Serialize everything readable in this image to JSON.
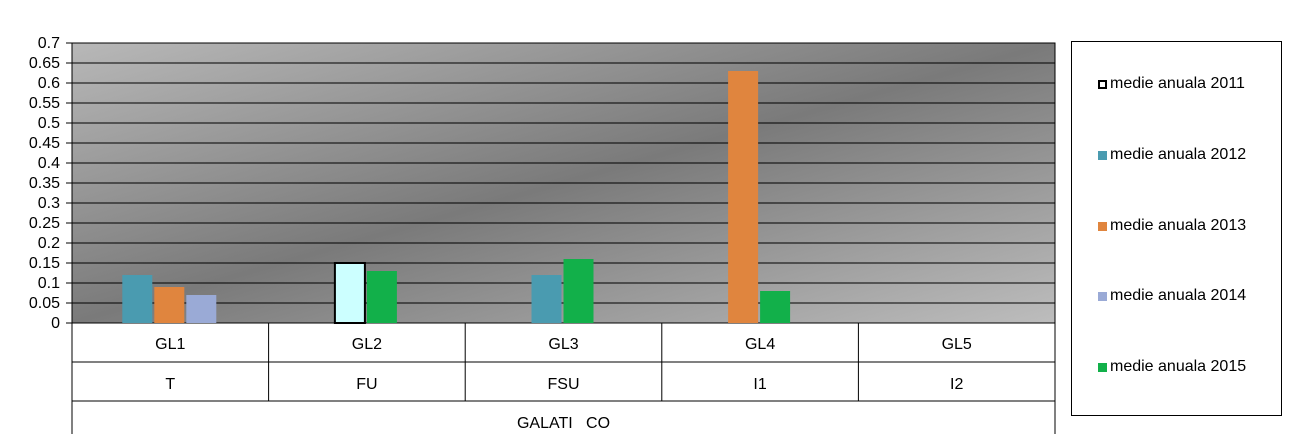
{
  "chart_data": {
    "type": "bar",
    "title": "",
    "xlabel": "",
    "ylabel": "",
    "ylim": [
      0,
      0.7
    ],
    "yticks": [
      "0",
      "0.05",
      "0.1",
      "0.15",
      "0.2",
      "0.25",
      "0.3",
      "0.35",
      "0.4",
      "0.45",
      "0.5",
      "0.55",
      "0.6",
      "0.65",
      "0.7"
    ],
    "grid": true,
    "legend_position": "right",
    "categories": [
      {
        "code": "GL1",
        "type": "T"
      },
      {
        "code": "GL2",
        "type": "FU"
      },
      {
        "code": "GL3",
        "type": "FSU"
      },
      {
        "code": "GL4",
        "type": "I1"
      },
      {
        "code": "GL5",
        "type": "I2"
      }
    ],
    "group_label": "GALATI   CO",
    "series": [
      {
        "name": "medie anuala 2011",
        "color": "#ccffff",
        "values": [
          null,
          0.15,
          null,
          null,
          null
        ]
      },
      {
        "name": "medie anuala 2012",
        "color": "#4a9bb0",
        "values": [
          0.12,
          null,
          0.12,
          null,
          null
        ]
      },
      {
        "name": "medie anuala 2013",
        "color": "#e0853e",
        "values": [
          0.09,
          null,
          null,
          0.63,
          null
        ]
      },
      {
        "name": "medie anuala 2014",
        "color": "#9aaad6",
        "values": [
          0.07,
          null,
          null,
          null,
          null
        ]
      },
      {
        "name": "medie anuala 2015",
        "color": "#12b04a",
        "values": [
          null,
          0.13,
          0.16,
          0.08,
          null
        ]
      }
    ]
  }
}
